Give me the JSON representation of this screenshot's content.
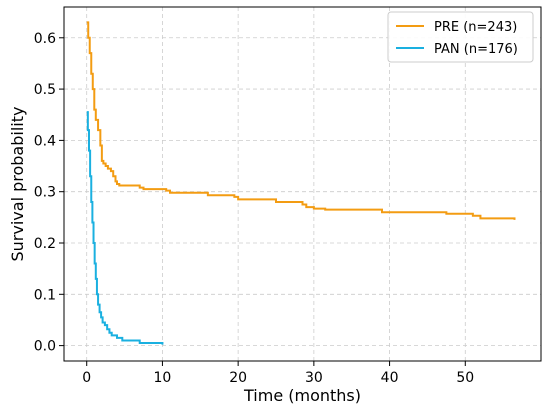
{
  "chart_data": {
    "type": "line",
    "line_style": "step",
    "title": "",
    "xlabel": "Time (months)",
    "ylabel": "Survival probability",
    "xlim": [
      -3,
      60
    ],
    "ylim": [
      -0.03,
      0.66
    ],
    "xticks": [
      0,
      10,
      20,
      30,
      40,
      50
    ],
    "yticks": [
      0.0,
      0.1,
      0.2,
      0.3,
      0.4,
      0.5,
      0.6
    ],
    "grid": true,
    "legend_position": "top-right",
    "series": [
      {
        "name": "PRE (n=243)",
        "color": "#f39c12",
        "x": [
          0,
          0.2,
          0.4,
          0.6,
          0.8,
          1.0,
          1.2,
          1.5,
          1.8,
          2.0,
          2.2,
          2.5,
          2.8,
          3.2,
          3.5,
          3.8,
          4.0,
          4.3,
          7.0,
          7.5,
          10.5,
          11.0,
          16.0,
          19.5,
          20.0,
          25.0,
          28.5,
          29.0,
          30.0,
          31.5,
          39.0,
          47.5,
          51.0,
          52.0,
          56.5
        ],
        "y": [
          0.63,
          0.6,
          0.57,
          0.53,
          0.5,
          0.46,
          0.44,
          0.42,
          0.39,
          0.36,
          0.355,
          0.35,
          0.345,
          0.34,
          0.33,
          0.32,
          0.315,
          0.312,
          0.308,
          0.305,
          0.302,
          0.298,
          0.293,
          0.29,
          0.285,
          0.28,
          0.275,
          0.27,
          0.267,
          0.265,
          0.26,
          0.257,
          0.253,
          0.248,
          0.245
        ]
      },
      {
        "name": "PAN (n=176)",
        "color": "#1ab0e0",
        "x": [
          0,
          0.15,
          0.3,
          0.45,
          0.6,
          0.75,
          0.9,
          1.05,
          1.2,
          1.35,
          1.5,
          1.7,
          1.9,
          2.1,
          2.4,
          2.7,
          3.0,
          3.3,
          4.0,
          4.7,
          7.0,
          10.0
        ],
        "y": [
          0.455,
          0.42,
          0.38,
          0.33,
          0.28,
          0.24,
          0.2,
          0.16,
          0.13,
          0.1,
          0.08,
          0.065,
          0.055,
          0.045,
          0.04,
          0.032,
          0.025,
          0.02,
          0.015,
          0.01,
          0.005,
          0.002
        ]
      }
    ]
  }
}
